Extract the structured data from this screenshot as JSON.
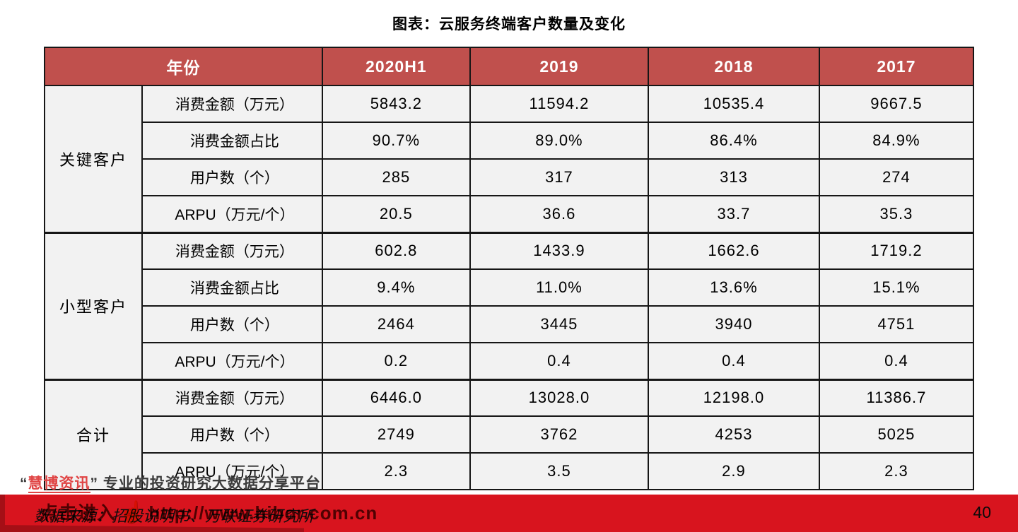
{
  "title": "图表：云服务终端客户数量及变化",
  "colors": {
    "header-red": "#C0504D",
    "footer-red": "#D8141E",
    "footer-dark-red": "#A50F16",
    "watermark-red": "#E04545",
    "link-dark": "#5E0B10",
    "cell-bg": "#F2F2F2"
  },
  "table": {
    "header": {
      "year_label": "年份",
      "years": [
        "2020H1",
        "2019",
        "2018",
        "2017"
      ]
    },
    "groups": [
      {
        "name": "关键客户",
        "rows": [
          {
            "metric": "消费金额（万元）",
            "values": [
              "5843.2",
              "11594.2",
              "10535.4",
              "9667.5"
            ]
          },
          {
            "metric": "消费金额占比",
            "values": [
              "90.7%",
              "89.0%",
              "86.4%",
              "84.9%"
            ]
          },
          {
            "metric": "用户数（个）",
            "values": [
              "285",
              "317",
              "313",
              "274"
            ]
          },
          {
            "metric": "ARPU（万元/个）",
            "values": [
              "20.5",
              "36.6",
              "33.7",
              "35.3"
            ]
          }
        ]
      },
      {
        "name": "小型客户",
        "rows": [
          {
            "metric": "消费金额（万元）",
            "values": [
              "602.8",
              "1433.9",
              "1662.6",
              "1719.2"
            ]
          },
          {
            "metric": "消费金额占比",
            "values": [
              "9.4%",
              "11.0%",
              "13.6%",
              "15.1%"
            ]
          },
          {
            "metric": "用户数（个）",
            "values": [
              "2464",
              "3445",
              "3940",
              "4751"
            ]
          },
          {
            "metric": "ARPU（万元/个）",
            "values": [
              "0.2",
              "0.4",
              "0.4",
              "0.4"
            ]
          }
        ]
      },
      {
        "name": "合计",
        "rows": [
          {
            "metric": "消费金额（万元）",
            "values": [
              "6446.0",
              "13028.0",
              "12198.0",
              "11386.7"
            ]
          },
          {
            "metric": "用户数（个）",
            "values": [
              "2749",
              "3762",
              "4253",
              "5025"
            ]
          },
          {
            "metric": "ARPU（万元/个）",
            "values": [
              "2.3",
              "3.5",
              "2.9",
              "2.3"
            ]
          }
        ]
      }
    ]
  },
  "watermark": {
    "open_quote": "“",
    "brand": "慧博资讯",
    "close_quote": "”",
    "tagline": "专业的投资研究大数据分享平台"
  },
  "footer": {
    "source_text": "数据来源：招股说明书、万联证券研究所",
    "link_label": "点击进入",
    "hand_icon": "☝",
    "link_url": "http://www.hibor.com.cn",
    "page_number": "40"
  }
}
